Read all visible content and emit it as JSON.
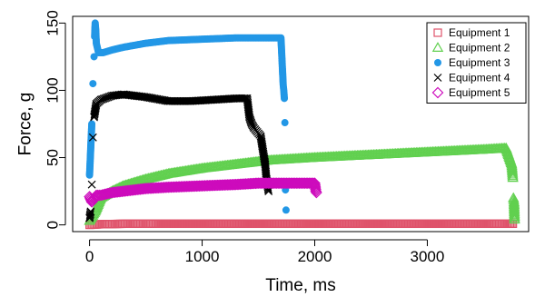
{
  "chart_data": {
    "type": "scatter",
    "title": "",
    "xlabel": "Time, ms",
    "ylabel": "Force, g",
    "xlim": [
      -150,
      3900
    ],
    "ylim": [
      -5,
      155
    ],
    "xticks": [
      0,
      1000,
      2000,
      3000
    ],
    "xtick_labels": [
      "0",
      "1000",
      "2000",
      "3000"
    ],
    "yticks": [
      0,
      50,
      100,
      150
    ],
    "ytick_labels": [
      "0",
      "50",
      "100",
      "150"
    ],
    "grid": false,
    "legend_position": "top-right",
    "series": [
      {
        "name": "Equipment 1",
        "color": "#DF536B",
        "marker": "square",
        "points": [
          [
            0,
            0
          ],
          [
            100,
            0.5
          ],
          [
            300,
            0.8
          ],
          [
            600,
            0.8
          ],
          [
            1000,
            0.8
          ],
          [
            1500,
            0.8
          ],
          [
            2000,
            0.8
          ],
          [
            2500,
            0.8
          ],
          [
            3000,
            0.8
          ],
          [
            3500,
            0.8
          ],
          [
            3760,
            0.8
          ]
        ]
      },
      {
        "name": "Equipment 2",
        "color": "#61D04F",
        "marker": "triangle",
        "points": [
          [
            0,
            3
          ],
          [
            20,
            6
          ],
          [
            50,
            10
          ],
          [
            100,
            20
          ],
          [
            200,
            25
          ],
          [
            300,
            29
          ],
          [
            500,
            34
          ],
          [
            700,
            38
          ],
          [
            1000,
            42
          ],
          [
            1300,
            45
          ],
          [
            1600,
            48
          ],
          [
            2000,
            50
          ],
          [
            2500,
            52
          ],
          [
            3000,
            54
          ],
          [
            3500,
            56
          ],
          [
            3700,
            57
          ],
          [
            3750,
            45
          ],
          [
            3755,
            40
          ],
          [
            3760,
            35
          ],
          [
            3765,
            20
          ],
          [
            3770,
            17
          ],
          [
            3775,
            4
          ]
        ]
      },
      {
        "name": "Equipment 3",
        "color": "#2297E6",
        "marker": "dot",
        "points": [
          [
            0,
            37
          ],
          [
            20,
            75
          ],
          [
            30,
            105
          ],
          [
            40,
            125
          ],
          [
            45,
            140
          ],
          [
            50,
            150
          ],
          [
            55,
            145
          ],
          [
            60,
            135
          ],
          [
            80,
            128
          ],
          [
            120,
            128
          ],
          [
            200,
            130
          ],
          [
            300,
            132
          ],
          [
            500,
            135
          ],
          [
            700,
            137
          ],
          [
            1000,
            138
          ],
          [
            1300,
            139
          ],
          [
            1500,
            139
          ],
          [
            1700,
            139
          ],
          [
            1720,
            104
          ],
          [
            1725,
            100
          ],
          [
            1730,
            94
          ],
          [
            1735,
            76
          ],
          [
            1740,
            26
          ],
          [
            1745,
            11
          ]
        ]
      },
      {
        "name": "Equipment 4",
        "color": "#000000",
        "marker": "cross",
        "points": [
          [
            0,
            5
          ],
          [
            10,
            10
          ],
          [
            20,
            30
          ],
          [
            30,
            65
          ],
          [
            40,
            80
          ],
          [
            60,
            90
          ],
          [
            100,
            93
          ],
          [
            200,
            96
          ],
          [
            300,
            97
          ],
          [
            500,
            95
          ],
          [
            700,
            92
          ],
          [
            900,
            92
          ],
          [
            1100,
            93
          ],
          [
            1300,
            94
          ],
          [
            1400,
            94
          ],
          [
            1420,
            80
          ],
          [
            1440,
            75
          ],
          [
            1460,
            72
          ],
          [
            1480,
            70
          ],
          [
            1500,
            68
          ],
          [
            1520,
            66
          ],
          [
            1550,
            50
          ],
          [
            1560,
            45
          ],
          [
            1570,
            35
          ],
          [
            1580,
            30
          ],
          [
            1590,
            25
          ]
        ]
      },
      {
        "name": "Equipment 5",
        "color": "#CD0BBC",
        "marker": "diamond",
        "points": [
          [
            0,
            21
          ],
          [
            20,
            17
          ],
          [
            40,
            19
          ],
          [
            60,
            22
          ],
          [
            100,
            22
          ],
          [
            150,
            23
          ],
          [
            200,
            24
          ],
          [
            300,
            25
          ],
          [
            500,
            27
          ],
          [
            700,
            28
          ],
          [
            1000,
            29
          ],
          [
            1300,
            30
          ],
          [
            1500,
            31
          ],
          [
            1700,
            31
          ],
          [
            1900,
            31
          ],
          [
            2000,
            31
          ],
          [
            2010,
            25
          ],
          [
            2015,
            24
          ]
        ]
      }
    ]
  }
}
